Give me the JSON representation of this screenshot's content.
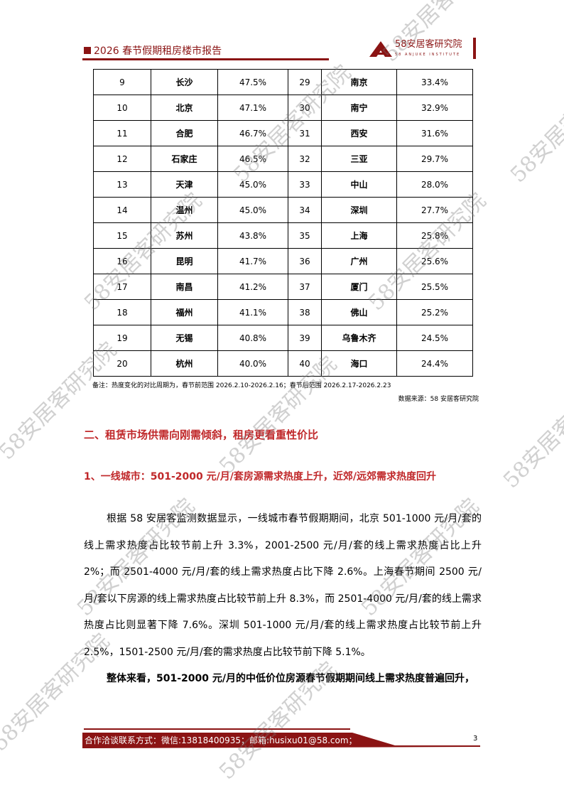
{
  "header": {
    "title": "2026 春节假期租房楼市报告",
    "logo_name": "58安居客研究院",
    "logo_sub": "58 ANJUKE INSTITUTE"
  },
  "table": {
    "rows": [
      [
        "9",
        "长沙",
        "47.5%",
        "29",
        "南京",
        "33.4%"
      ],
      [
        "10",
        "北京",
        "47.1%",
        "30",
        "南宁",
        "32.9%"
      ],
      [
        "11",
        "合肥",
        "46.7%",
        "31",
        "西安",
        "31.6%"
      ],
      [
        "12",
        "石家庄",
        "46.5%",
        "32",
        "三亚",
        "29.7%"
      ],
      [
        "13",
        "天津",
        "45.0%",
        "33",
        "中山",
        "28.0%"
      ],
      [
        "14",
        "温州",
        "45.0%",
        "34",
        "深圳",
        "27.7%"
      ],
      [
        "15",
        "苏州",
        "43.8%",
        "35",
        "上海",
        "25.8%"
      ],
      [
        "16",
        "昆明",
        "41.7%",
        "36",
        "广州",
        "25.6%"
      ],
      [
        "17",
        "南昌",
        "41.2%",
        "37",
        "厦门",
        "25.5%"
      ],
      [
        "18",
        "福州",
        "41.1%",
        "38",
        "佛山",
        "25.2%"
      ],
      [
        "19",
        "无锡",
        "40.8%",
        "39",
        "乌鲁木齐",
        "24.5%"
      ],
      [
        "20",
        "杭州",
        "40.0%",
        "40",
        "海口",
        "24.4%"
      ]
    ]
  },
  "note": "备注：热度变化的对比周期为，春节前范围 2026.2.10-2026.2.16；春节后范围 2026.2.17-2026.2.23",
  "source": "数据来源：58 安居客研究院",
  "section_heading": "二、租赁市场供需向刚需倾斜，租房更看重性价比",
  "subsection_heading": "1、一线城市：501-2000 元/月/套房源需求热度上升，近郊/远郊需求热度回升",
  "paragraph1": "根据 58 安居客监测数据显示，一线城市春节假期期间，北京 501-1000 元/月/套的线上需求热度占比较节前上升 3.3%，2001-2500 元/月/套的线上需求热度占比上升 2%；而 2501-4000 元/月/套的线上需求热度占比下降 2.6%。上海春节期间 2500 元/月/套以下房源的线上需求热度占比较节前上升 8.3%，而 2501-4000 元/月/套的线上需求热度占比则显著下降 7.6%。深圳 501-1000 元/月/套的线上需求热度占比较节前上升 2.5%，1501-2500 元/月/套的需求热度占比较节前下降 5.1%。",
  "paragraph2": "整体来看，501-2000 元/月的中低价位房源春节假期期间线上需求热度普遍回升，",
  "footer": {
    "contact": "合作洽谈联系方式：微信:13818400935；邮箱:husixu01@58.com；",
    "page_number": "3"
  },
  "watermark": "58安居客研究院",
  "colors": {
    "brand": "#8b1414",
    "heading": "#c0282a"
  }
}
